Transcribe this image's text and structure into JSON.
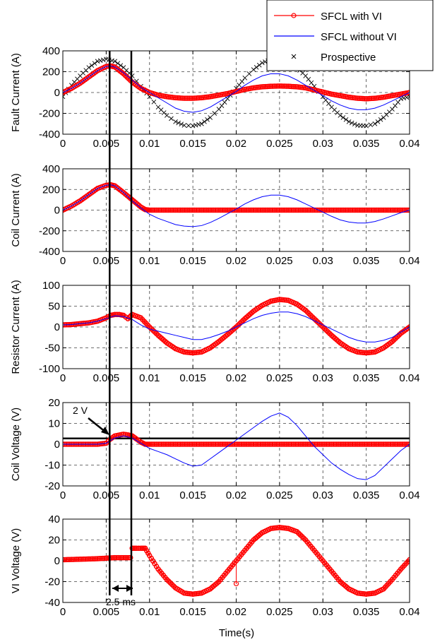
{
  "chart_data": {
    "type": "line",
    "xlabel": "Time(s)",
    "x_ticks": [
      "0",
      "0.005",
      "0.01",
      "0.015",
      "0.02",
      "0.025",
      "0.03",
      "0.035",
      "0.04"
    ],
    "xlim": [
      0,
      0.04
    ],
    "grid": true,
    "legend": {
      "placement": "top-right",
      "entries": [
        {
          "name": "SFCL with VI",
          "color": "#ff0000",
          "marker": "circle"
        },
        {
          "name": "SFCL without VI",
          "color": "#0000ff",
          "marker": "none"
        },
        {
          "name": "Prospective",
          "color": "#000000",
          "marker": "x"
        }
      ]
    },
    "colors": {
      "with_vi": "#ff0000",
      "without_vi": "#0000ff",
      "prospective": "#000000"
    },
    "vertical_markers": [
      0.0054,
      0.0079
    ],
    "annotations": [
      {
        "text": "2 V",
        "subplot": 3,
        "x": 0.003,
        "y": 15
      },
      {
        "text": "2.5 ms",
        "subplot": 4,
        "x": 0.0073,
        "y": -30
      }
    ],
    "subplots": [
      {
        "ylabel": "Fault Current (A)",
        "ylim": [
          -400,
          400
        ],
        "y_ticks": [
          "-400",
          "-200",
          "0",
          "200",
          "400"
        ],
        "series": [
          {
            "name": "SFCL with VI",
            "x": [
              0,
              0.001,
              0.002,
              0.003,
              0.004,
              0.005,
              0.0055,
              0.006,
              0.007,
              0.008,
              0.009,
              0.01,
              0.011,
              0.012,
              0.013,
              0.014,
              0.015,
              0.016,
              0.017,
              0.018,
              0.019,
              0.02,
              0.021,
              0.022,
              0.023,
              0.024,
              0.025,
              0.026,
              0.027,
              0.028,
              0.029,
              0.03,
              0.031,
              0.032,
              0.033,
              0.034,
              0.035,
              0.036,
              0.037,
              0.038,
              0.039,
              0.04
            ],
            "y": [
              0,
              40,
              90,
              150,
              210,
              250,
              255,
              245,
              180,
              100,
              40,
              0,
              -25,
              -40,
              -50,
              -55,
              -55,
              -50,
              -40,
              -25,
              -10,
              10,
              30,
              45,
              55,
              60,
              62,
              60,
              55,
              45,
              25,
              5,
              -15,
              -30,
              -45,
              -55,
              -60,
              -55,
              -45,
              -30,
              -15,
              0
            ]
          },
          {
            "name": "SFCL without VI",
            "x": [
              0,
              0.001,
              0.002,
              0.003,
              0.004,
              0.005,
              0.0055,
              0.006,
              0.007,
              0.008,
              0.009,
              0.01,
              0.011,
              0.012,
              0.013,
              0.014,
              0.015,
              0.016,
              0.017,
              0.018,
              0.019,
              0.02,
              0.021,
              0.022,
              0.023,
              0.024,
              0.025,
              0.026,
              0.027,
              0.028,
              0.029,
              0.03,
              0.031,
              0.032,
              0.033,
              0.034,
              0.035,
              0.036,
              0.037,
              0.038,
              0.039,
              0.04
            ],
            "y": [
              0,
              40,
              90,
              150,
              210,
              250,
              255,
              245,
              190,
              120,
              50,
              0,
              -50,
              -100,
              -150,
              -180,
              -190,
              -175,
              -140,
              -90,
              -40,
              10,
              70,
              120,
              160,
              180,
              180,
              160,
              120,
              70,
              20,
              -30,
              -80,
              -120,
              -150,
              -165,
              -165,
              -150,
              -120,
              -80,
              -40,
              0
            ]
          },
          {
            "name": "Prospective",
            "x": [
              0,
              0.001,
              0.002,
              0.003,
              0.004,
              0.005,
              0.006,
              0.007,
              0.008,
              0.009,
              0.01,
              0.011,
              0.012,
              0.013,
              0.014,
              0.015,
              0.016,
              0.017,
              0.018,
              0.019,
              0.02,
              0.021,
              0.022,
              0.023,
              0.024,
              0.025,
              0.026,
              0.027,
              0.028,
              0.029,
              0.03,
              0.031,
              0.032,
              0.033,
              0.034,
              0.035,
              0.036,
              0.037,
              0.038,
              0.039,
              0.04
            ],
            "y": [
              -40,
              70,
              160,
              240,
              300,
              320,
              300,
              240,
              160,
              60,
              -40,
              -140,
              -220,
              -280,
              -315,
              -320,
              -300,
              -240,
              -160,
              -60,
              40,
              140,
              220,
              285,
              315,
              320,
              300,
              240,
              160,
              60,
              -40,
              -140,
              -220,
              -280,
              -315,
              -320,
              -300,
              -240,
              -160,
              -60,
              -40
            ]
          }
        ]
      },
      {
        "ylabel": "Coil Current (A)",
        "ylim": [
          -400,
          400
        ],
        "y_ticks": [
          "-400",
          "-200",
          "0",
          "200",
          "400"
        ],
        "series": [
          {
            "name": "SFCL with VI",
            "x": [
              0,
              0.001,
              0.002,
              0.003,
              0.004,
              0.005,
              0.0055,
              0.006,
              0.007,
              0.008,
              0.009,
              0.0095,
              0.01,
              0.015,
              0.02,
              0.025,
              0.03,
              0.035,
              0.04
            ],
            "y": [
              0,
              40,
              90,
              150,
              210,
              240,
              245,
              235,
              170,
              100,
              30,
              5,
              0,
              0,
              0,
              0,
              0,
              0,
              0
            ]
          },
          {
            "name": "SFCL without VI",
            "x": [
              0,
              0.001,
              0.002,
              0.003,
              0.004,
              0.005,
              0.0055,
              0.006,
              0.007,
              0.008,
              0.009,
              0.01,
              0.011,
              0.012,
              0.013,
              0.014,
              0.015,
              0.016,
              0.017,
              0.018,
              0.019,
              0.02,
              0.021,
              0.022,
              0.023,
              0.024,
              0.025,
              0.026,
              0.027,
              0.028,
              0.029,
              0.03,
              0.031,
              0.032,
              0.033,
              0.034,
              0.035,
              0.036,
              0.037,
              0.038,
              0.039,
              0.04
            ],
            "y": [
              0,
              40,
              90,
              150,
              210,
              240,
              245,
              235,
              170,
              90,
              20,
              -40,
              -80,
              -110,
              -140,
              -155,
              -160,
              -150,
              -120,
              -80,
              -35,
              10,
              60,
              100,
              130,
              145,
              145,
              130,
              100,
              60,
              20,
              -20,
              -60,
              -95,
              -115,
              -125,
              -125,
              -110,
              -85,
              -55,
              -25,
              0
            ]
          }
        ]
      },
      {
        "ylabel": "Resistor Current (A)",
        "ylim": [
          -100,
          100
        ],
        "y_ticks": [
          "-100",
          "-50",
          "0",
          "50",
          "100"
        ],
        "series": [
          {
            "name": "SFCL with VI",
            "x": [
              0,
              0.001,
              0.002,
              0.003,
              0.004,
              0.005,
              0.0055,
              0.006,
              0.0065,
              0.007,
              0.0075,
              0.008,
              0.009,
              0.01,
              0.011,
              0.012,
              0.013,
              0.014,
              0.015,
              0.016,
              0.017,
              0.018,
              0.019,
              0.02,
              0.021,
              0.022,
              0.023,
              0.024,
              0.025,
              0.026,
              0.027,
              0.028,
              0.029,
              0.03,
              0.031,
              0.032,
              0.033,
              0.034,
              0.035,
              0.036,
              0.037,
              0.038,
              0.039,
              0.04
            ],
            "y": [
              5,
              6,
              8,
              10,
              14,
              22,
              28,
              30,
              30,
              28,
              20,
              30,
              22,
              0,
              -20,
              -38,
              -52,
              -60,
              -62,
              -60,
              -50,
              -35,
              -18,
              0,
              20,
              38,
              52,
              62,
              66,
              64,
              55,
              40,
              20,
              0,
              -20,
              -38,
              -52,
              -60,
              -62,
              -60,
              -50,
              -35,
              -15,
              0
            ]
          },
          {
            "name": "SFCL without VI",
            "x": [
              0,
              0.001,
              0.002,
              0.003,
              0.004,
              0.005,
              0.006,
              0.007,
              0.008,
              0.009,
              0.01,
              0.011,
              0.012,
              0.013,
              0.014,
              0.015,
              0.016,
              0.017,
              0.018,
              0.019,
              0.02,
              0.021,
              0.022,
              0.023,
              0.024,
              0.025,
              0.026,
              0.027,
              0.028,
              0.029,
              0.03,
              0.031,
              0.032,
              0.033,
              0.034,
              0.035,
              0.036,
              0.037,
              0.038,
              0.039,
              0.04
            ],
            "y": [
              5,
              6,
              8,
              10,
              14,
              20,
              27,
              25,
              18,
              5,
              -5,
              -10,
              -15,
              -20,
              -25,
              -30,
              -30,
              -25,
              -18,
              -10,
              0,
              10,
              20,
              28,
              33,
              36,
              36,
              32,
              25,
              15,
              5,
              -5,
              -15,
              -25,
              -32,
              -36,
              -36,
              -32,
              -25,
              -12,
              0
            ]
          }
        ]
      },
      {
        "ylabel": "Coil Voltage (V)",
        "ylim": [
          -20,
          20
        ],
        "y_ticks": [
          "-20",
          "-10",
          "0",
          "10",
          "20"
        ],
        "reference_line_y": 2.8,
        "series": [
          {
            "name": "SFCL with VI",
            "x": [
              0,
              0.004,
              0.005,
              0.0055,
              0.006,
              0.007,
              0.0075,
              0.008,
              0.0085,
              0.009,
              0.0095,
              0.01,
              0.015,
              0.02,
              0.025,
              0.03,
              0.035,
              0.04
            ],
            "y": [
              0,
              0,
              0.5,
              2.5,
              4,
              4.8,
              4.5,
              4,
              2.5,
              1,
              0,
              0,
              0,
              0,
              0,
              0,
              0,
              0
            ]
          },
          {
            "name": "SFCL without VI",
            "x": [
              0,
              0.004,
              0.005,
              0.006,
              0.007,
              0.008,
              0.009,
              0.01,
              0.011,
              0.012,
              0.013,
              0.014,
              0.015,
              0.016,
              0.017,
              0.018,
              0.019,
              0.02,
              0.021,
              0.022,
              0.023,
              0.024,
              0.025,
              0.026,
              0.027,
              0.028,
              0.029,
              0.03,
              0.031,
              0.032,
              0.033,
              0.034,
              0.035,
              0.036,
              0.037,
              0.038,
              0.039,
              0.04
            ],
            "y": [
              0,
              0,
              0.5,
              3,
              4,
              3,
              0.5,
              -2,
              -3.5,
              -5,
              -7,
              -9,
              -10.5,
              -10,
              -7,
              -4,
              -1,
              2,
              5,
              8,
              11,
              13.5,
              15,
              13,
              9,
              4,
              -1,
              -5,
              -9,
              -12,
              -14.5,
              -16.5,
              -17,
              -15,
              -11,
              -7,
              -3,
              0
            ]
          }
        ]
      },
      {
        "ylabel": "VI Voltage (V)",
        "ylim": [
          -40,
          40
        ],
        "y_ticks": [
          "-40",
          "-20",
          "0",
          "20",
          "40"
        ],
        "series": [
          {
            "name": "SFCL with VI",
            "x": [
              0,
              0.002,
              0.004,
              0.005,
              0.006,
              0.007,
              0.0078,
              0.008,
              0.0085,
              0.009,
              0.0095,
              0.01,
              0.011,
              0.012,
              0.013,
              0.014,
              0.015,
              0.016,
              0.017,
              0.018,
              0.019,
              0.02,
              0.021,
              0.022,
              0.023,
              0.024,
              0.025,
              0.026,
              0.027,
              0.028,
              0.029,
              0.03,
              0.031,
              0.032,
              0.033,
              0.034,
              0.035,
              0.036,
              0.037,
              0.038,
              0.039,
              0.04
            ],
            "y": [
              1,
              1.5,
              2,
              2.5,
              3,
              3,
              3,
              12,
              12,
              12,
              12,
              5,
              -8,
              -18,
              -26,
              -31,
              -32,
              -31,
              -27,
              -20,
              -10,
              0,
              10,
              20,
              27,
              31,
              32,
              31,
              28,
              20,
              10,
              0,
              -10,
              -20,
              -27,
              -31,
              -32,
              -31,
              -27,
              -18,
              -8,
              1
            ]
          }
        ]
      }
    ]
  }
}
